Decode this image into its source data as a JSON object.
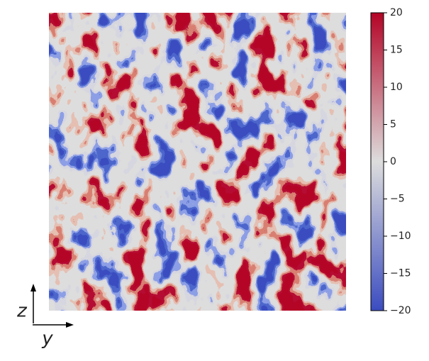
{
  "chart_data": {
    "type": "heatmap",
    "x_label": "y",
    "y_label": "z",
    "colormap": [
      "#3b4cc0",
      "#dddddd",
      "#b40426"
    ],
    "clim": [
      -20,
      20
    ],
    "cticks": [
      {
        "value": -20,
        "label": "−20"
      },
      {
        "value": -15,
        "label": "−15"
      },
      {
        "value": -10,
        "label": "−10"
      },
      {
        "value": -5,
        "label": "−5"
      },
      0,
      5,
      10,
      15,
      20
    ]
  }
}
